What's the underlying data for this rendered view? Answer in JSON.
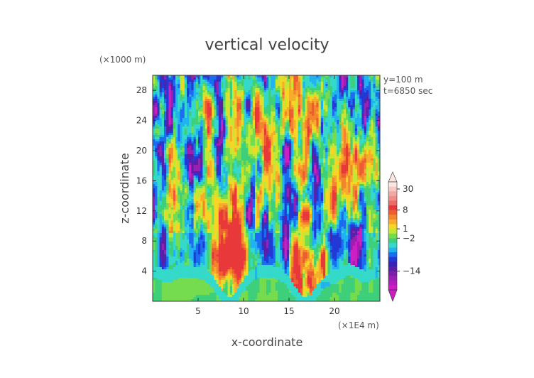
{
  "chart_data": {
    "type": "heatmap",
    "title": "vertical velocity",
    "xlabel": "x-coordinate",
    "ylabel": "z-coordinate",
    "x_unit": "(×1E4 m)",
    "y_unit": "(×1000 m)",
    "xlim": [
      0,
      25
    ],
    "ylim": [
      0,
      30
    ],
    "x_ticks": [
      5,
      10,
      15,
      20
    ],
    "y_ticks": [
      4,
      8,
      12,
      16,
      20,
      24,
      28
    ],
    "annotations": [
      "y=100 m",
      "t=6850 sec"
    ],
    "colorbar": {
      "tick_labels": [
        {
          "label": "30",
          "value": 30
        },
        {
          "label": "8",
          "value": 8
        },
        {
          "label": "1",
          "value": 1
        },
        {
          "label": "−2",
          "value": -2
        },
        {
          "label": "−14",
          "value": -14
        }
      ],
      "colors_top_to_bottom": [
        "#fbe6e1",
        "#f6c9c4",
        "#f2a9a4",
        "#ef8d88",
        "#ec6b67",
        "#e8383a",
        "#ee5c33",
        "#f3862c",
        "#f7ad2c",
        "#f6d524",
        "#c4e734",
        "#74dc4e",
        "#3ecf7b",
        "#35d9c9",
        "#20b3ef",
        "#1c6cf0",
        "#2239d6",
        "#3a22b9",
        "#5a1fa8",
        "#7b1fa8",
        "#9b1fb2",
        "#b51cbd",
        "#cd1ec4"
      ]
    },
    "structure": "near-surface (z<4) uniform green ~0; two broad plume regions near x≈7–10 and x≈15–19 with positive (orange/yellow) values; alternating vertical streaks of positive (orange/yellow) and negative (blue) velocity aloft up to z≈30"
  }
}
